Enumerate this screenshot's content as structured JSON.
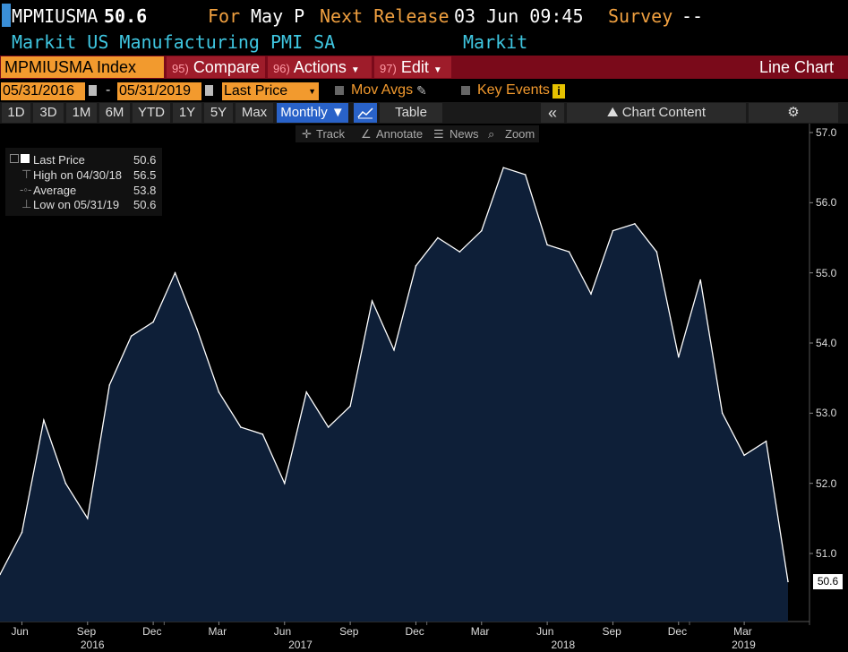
{
  "header": {
    "ticker_code": "MPMIUSMA",
    "price": "50.6",
    "for_label": "For",
    "period": "May P",
    "next_release_label": "Next Release",
    "next_release": "03 Jun 09:45",
    "survey_label": "Survey",
    "survey_value": "--",
    "description": "Markit US Manufacturing PMI SA",
    "source": "Markit"
  },
  "toolbar": {
    "security": "MPMIUSMA Index",
    "compare_num": "95)",
    "compare_label": "Compare",
    "actions_num": "96)",
    "actions_label": "Actions",
    "edit_num": "97)",
    "edit_label": "Edit",
    "chart_type": "Line Chart"
  },
  "range": {
    "start_date": "05/31/2016",
    "dash": "-",
    "end_date": "05/31/2019",
    "field": "Last Price",
    "mov_avgs": "Mov Avgs",
    "key_events": "Key Events"
  },
  "periods": {
    "items": [
      "1D",
      "3D",
      "1M",
      "6M",
      "YTD",
      "1Y",
      "5Y",
      "Max"
    ],
    "frequency": "Monthly",
    "table_label": "Table",
    "chart_content": "Chart Content"
  },
  "tools": {
    "track": "Track",
    "annotate": "Annotate",
    "news": "News",
    "zoom": "Zoom"
  },
  "legend": {
    "last_label": "Last Price",
    "last_value": "50.6",
    "high_label": "High on 04/30/18",
    "high_value": "56.5",
    "avg_label": "Average",
    "avg_value": "53.8",
    "low_label": "Low on 05/31/19",
    "low_value": "50.6"
  },
  "colors": {
    "area_fill": "#0e1f38",
    "line": "#ffffff",
    "accent_orange": "#f29a2e",
    "header_cyan": "#3fc6e0"
  },
  "chart_data": {
    "type": "area",
    "x": [
      "2016-05",
      "2016-06",
      "2016-07",
      "2016-08",
      "2016-09",
      "2016-10",
      "2016-11",
      "2016-12",
      "2017-01",
      "2017-02",
      "2017-03",
      "2017-04",
      "2017-05",
      "2017-06",
      "2017-07",
      "2017-08",
      "2017-09",
      "2017-10",
      "2017-11",
      "2017-12",
      "2018-01",
      "2018-02",
      "2018-03",
      "2018-04",
      "2018-05",
      "2018-06",
      "2018-07",
      "2018-08",
      "2018-09",
      "2018-10",
      "2018-11",
      "2018-12",
      "2019-01",
      "2019-02",
      "2019-03",
      "2019-04",
      "2019-05"
    ],
    "values": [
      50.7,
      51.3,
      52.9,
      52.0,
      51.5,
      53.4,
      54.1,
      54.3,
      55.0,
      54.2,
      53.3,
      52.8,
      52.7,
      52.0,
      53.3,
      52.8,
      53.1,
      54.6,
      53.9,
      55.1,
      55.5,
      55.3,
      55.6,
      56.5,
      56.4,
      55.4,
      55.3,
      54.7,
      55.6,
      55.7,
      55.3,
      53.8,
      54.9,
      53.0,
      52.4,
      52.6,
      50.6
    ],
    "y_ticks": [
      "57.0",
      "56.0",
      "55.0",
      "54.0",
      "53.0",
      "52.0",
      "51.0"
    ],
    "ylim": [
      49.9,
      57.1
    ],
    "x_month_labels": [
      "Jun",
      "Sep",
      "Dec",
      "Mar",
      "Jun",
      "Sep",
      "Dec",
      "Mar",
      "Jun",
      "Sep",
      "Dec",
      "Mar"
    ],
    "x_year_labels": [
      "2016",
      "2017",
      "2018",
      "2019"
    ],
    "last_value_label": "50.6"
  }
}
